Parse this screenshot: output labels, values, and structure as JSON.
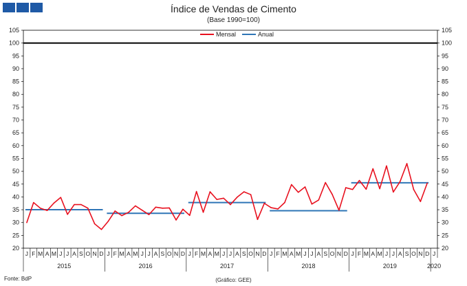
{
  "header": {
    "title": "Índice de Vendas de Cimento",
    "subtitle": "(Base 1990=100)"
  },
  "footer": {
    "source": "Fonte: BdP",
    "credit": "(Gráfico: GEE)"
  },
  "colors": {
    "mensal": "#e8101e",
    "anual": "#2e75b6",
    "reference": "#000000",
    "logo": "#1f5aa6"
  },
  "chart_data": {
    "type": "line",
    "title": "Índice de Vendas de Cimento",
    "subtitle": "(Base 1990=100)",
    "ylim": [
      20,
      105
    ],
    "yticks": [
      20,
      25,
      30,
      35,
      40,
      45,
      50,
      55,
      60,
      65,
      70,
      75,
      80,
      85,
      90,
      95,
      100,
      105
    ],
    "grid": false,
    "legend_position": "top-center",
    "reference_line": 100,
    "month_labels": [
      "J",
      "F",
      "M",
      "A",
      "M",
      "J",
      "J",
      "A",
      "S",
      "O",
      "N",
      "D"
    ],
    "years": [
      "2015",
      "2016",
      "2017",
      "2018",
      "2019",
      "2020"
    ],
    "legend": [
      "Mensal",
      "Anual"
    ],
    "series": [
      {
        "name": "Mensal",
        "values": [
          30.0,
          37.8,
          35.6,
          34.7,
          37.6,
          39.8,
          33.2,
          37.0,
          37.0,
          35.6,
          29.5,
          27.3,
          30.5,
          34.5,
          32.7,
          34.0,
          36.5,
          34.8,
          33.1,
          36.0,
          35.6,
          35.7,
          31.0,
          35.2,
          32.8,
          42.1,
          34.0,
          42.0,
          39.0,
          39.5,
          37.0,
          39.9,
          42.0,
          40.9,
          31.2,
          37.5,
          35.8,
          35.3,
          37.8,
          44.8,
          41.8,
          43.9,
          37.2,
          38.8,
          45.6,
          41.0,
          34.8,
          43.6,
          42.9,
          46.4,
          43.0,
          51.0,
          43.2,
          52.1,
          41.9,
          46.0,
          53.0,
          42.9,
          38.2,
          45.4
        ]
      },
      {
        "name": "Anual",
        "segments": [
          {
            "year": "2015",
            "value": 35.0
          },
          {
            "year": "2016",
            "value": 33.6
          },
          {
            "year": "2017",
            "value": 37.8
          },
          {
            "year": "2018",
            "value": 34.6
          },
          {
            "year": "2019",
            "value": 45.5
          }
        ]
      }
    ]
  }
}
